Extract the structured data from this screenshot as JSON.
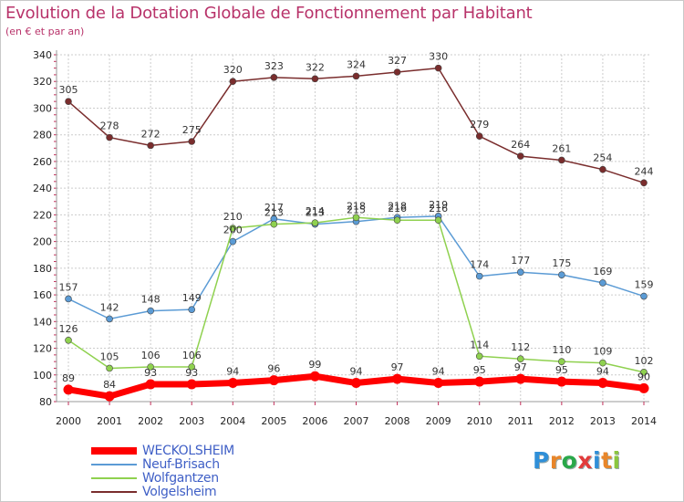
{
  "title": "Evolution de la Dotation Globale de Fonctionnement par Habitant",
  "subtitle": "(en € et par an)",
  "logo": {
    "text": "Proxiti",
    "letter_colors": [
      "#2f8fd8",
      "#e8862a",
      "#2aa84a",
      "#e23b3b",
      "#2f8fd8",
      "#e8862a",
      "#8bc63f"
    ]
  },
  "colors": {
    "WECKOLSHEIM": "#ff0000",
    "Neuf-Brisach": "#5b9bd5",
    "Wolfgantzen": "#8fd14f",
    "Volgelsheim": "#7a2d2d",
    "grid": "#cccccc",
    "axis_tick": "#c22f5a"
  },
  "chart_data": {
    "type": "line",
    "title": "Evolution de la Dotation Globale de Fonctionnement par Habitant",
    "subtitle": "(en € et par an)",
    "xlabel": "",
    "ylabel": "",
    "ylim": [
      80,
      340
    ],
    "yticks": [
      "80",
      "100",
      "120",
      "140",
      "160",
      "180",
      "200",
      "220",
      "240",
      "260",
      "280",
      "300",
      "320",
      "340"
    ],
    "categories": [
      "2000",
      "2001",
      "2002",
      "2003",
      "2004",
      "2005",
      "2006",
      "2007",
      "2008",
      "2009",
      "2010",
      "2011",
      "2012",
      "2013",
      "2014"
    ],
    "grid": true,
    "legend_position": "bottom-left",
    "series": [
      {
        "name": "Volgelsheim",
        "values": [
          305,
          278,
          272,
          275,
          320,
          323,
          322,
          324,
          327,
          330,
          279,
          264,
          261,
          254,
          244
        ]
      },
      {
        "name": "Neuf-Brisach",
        "values": [
          157,
          142,
          148,
          149,
          200,
          217,
          213,
          215,
          218,
          219,
          174,
          177,
          175,
          169,
          159
        ]
      },
      {
        "name": "Wolfgantzen",
        "values": [
          126,
          105,
          106,
          106,
          210,
          213,
          214,
          218,
          216,
          216,
          114,
          112,
          110,
          109,
          102
        ]
      },
      {
        "name": "WECKOLSHEIM",
        "values": [
          89,
          84,
          93,
          93,
          94,
          96,
          99,
          94,
          97,
          94,
          95,
          97,
          95,
          94,
          90
        ]
      }
    ],
    "legend": [
      "WECKOLSHEIM",
      "Neuf-Brisach",
      "Wolfgantzen",
      "Volgelsheim"
    ]
  }
}
